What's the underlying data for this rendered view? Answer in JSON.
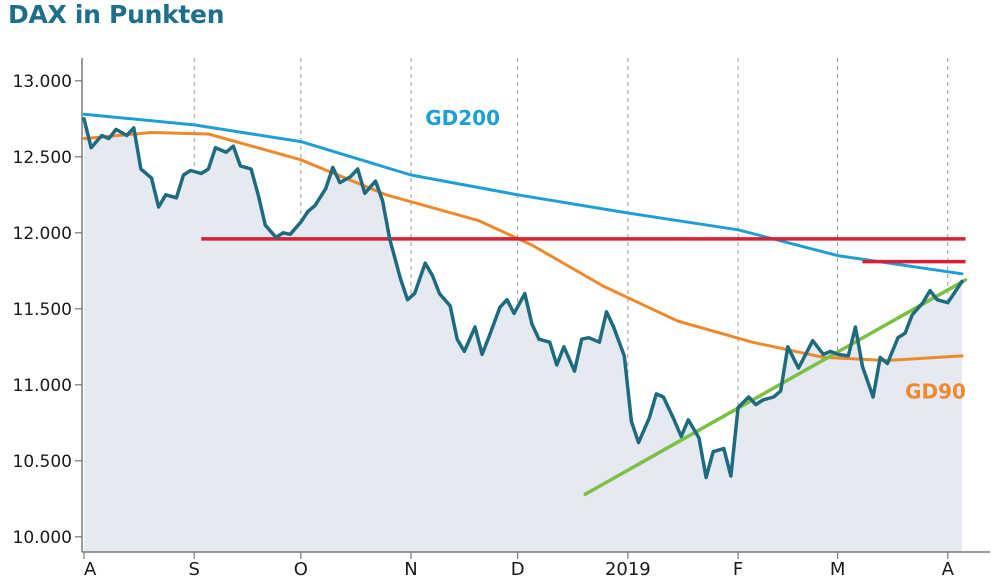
{
  "chart_data": {
    "type": "line",
    "title": "DAX in Punkten",
    "xlabel": "",
    "ylabel": "",
    "ylim": [
      9900,
      13150
    ],
    "y_ticks": [
      10000,
      10500,
      11000,
      11500,
      12000,
      12500,
      13000
    ],
    "y_tick_labels": [
      "10.000",
      "10.500",
      "11.000",
      "11.500",
      "12.000",
      "12.500",
      "13.000"
    ],
    "x_range": [
      "2018-08-01",
      "2019-04-05"
    ],
    "x_ticks": [
      {
        "date": "2018-08-01",
        "label": "A"
      },
      {
        "date": "2018-09-01",
        "label": "S"
      },
      {
        "date": "2018-10-01",
        "label": "O"
      },
      {
        "date": "2018-11-01",
        "label": "N"
      },
      {
        "date": "2018-12-01",
        "label": "D"
      },
      {
        "date": "2019-01-01",
        "label": "2019"
      },
      {
        "date": "2019-02-01",
        "label": "F"
      },
      {
        "date": "2019-03-01",
        "label": "M"
      },
      {
        "date": "2019-04-01",
        "label": "A"
      }
    ],
    "grid": "vertical-dashed",
    "colors": {
      "dax": "#1e6b80",
      "area": "#e4e9f2",
      "gd200": "#1f9fd6",
      "gd90": "#ee8a2d",
      "resistance": "#d81f35",
      "trend": "#7cc242",
      "axis": "#7a7a7a",
      "title": "#1e6f8c"
    },
    "series": [
      {
        "name": "DAX",
        "role": "dax",
        "points": [
          [
            "2018-08-01",
            12750
          ],
          [
            "2018-08-03",
            12560
          ],
          [
            "2018-08-06",
            12640
          ],
          [
            "2018-08-08",
            12620
          ],
          [
            "2018-08-10",
            12680
          ],
          [
            "2018-08-13",
            12640
          ],
          [
            "2018-08-15",
            12690
          ],
          [
            "2018-08-17",
            12420
          ],
          [
            "2018-08-20",
            12360
          ],
          [
            "2018-08-22",
            12170
          ],
          [
            "2018-08-24",
            12250
          ],
          [
            "2018-08-27",
            12230
          ],
          [
            "2018-08-29",
            12380
          ],
          [
            "2018-08-31",
            12410
          ],
          [
            "2018-09-03",
            12390
          ],
          [
            "2018-09-05",
            12420
          ],
          [
            "2018-09-07",
            12560
          ],
          [
            "2018-09-10",
            12530
          ],
          [
            "2018-09-12",
            12570
          ],
          [
            "2018-09-14",
            12440
          ],
          [
            "2018-09-17",
            12420
          ],
          [
            "2018-09-19",
            12250
          ],
          [
            "2018-09-21",
            12050
          ],
          [
            "2018-09-24",
            11970
          ],
          [
            "2018-09-26",
            12000
          ],
          [
            "2018-09-28",
            11990
          ],
          [
            "2018-10-01",
            12070
          ],
          [
            "2018-10-03",
            12140
          ],
          [
            "2018-10-05",
            12180
          ],
          [
            "2018-10-08",
            12290
          ],
          [
            "2018-10-10",
            12430
          ],
          [
            "2018-10-12",
            12330
          ],
          [
            "2018-10-15",
            12370
          ],
          [
            "2018-10-17",
            12420
          ],
          [
            "2018-10-19",
            12260
          ],
          [
            "2018-10-22",
            12340
          ],
          [
            "2018-10-24",
            12210
          ],
          [
            "2018-10-26",
            11960
          ],
          [
            "2018-10-29",
            11700
          ],
          [
            "2018-10-31",
            11560
          ],
          [
            "2018-11-02",
            11600
          ],
          [
            "2018-11-05",
            11800
          ],
          [
            "2018-11-07",
            11720
          ],
          [
            "2018-11-09",
            11600
          ],
          [
            "2018-11-12",
            11520
          ],
          [
            "2018-11-14",
            11300
          ],
          [
            "2018-11-16",
            11220
          ],
          [
            "2018-11-19",
            11380
          ],
          [
            "2018-11-21",
            11200
          ],
          [
            "2018-11-23",
            11320
          ],
          [
            "2018-11-26",
            11510
          ],
          [
            "2018-11-28",
            11560
          ],
          [
            "2018-11-30",
            11470
          ],
          [
            "2018-12-03",
            11600
          ],
          [
            "2018-12-05",
            11400
          ],
          [
            "2018-12-07",
            11300
          ],
          [
            "2018-12-10",
            11280
          ],
          [
            "2018-12-12",
            11130
          ],
          [
            "2018-12-14",
            11250
          ],
          [
            "2018-12-17",
            11090
          ],
          [
            "2018-12-19",
            11300
          ],
          [
            "2018-12-21",
            11310
          ],
          [
            "2018-12-24",
            11280
          ],
          [
            "2018-12-26",
            11480
          ],
          [
            "2018-12-28",
            11380
          ],
          [
            "2018-12-31",
            11190
          ],
          [
            "2019-01-02",
            10760
          ],
          [
            "2019-01-04",
            10620
          ],
          [
            "2019-01-07",
            10780
          ],
          [
            "2019-01-09",
            10940
          ],
          [
            "2019-01-11",
            10920
          ],
          [
            "2019-01-14",
            10770
          ],
          [
            "2019-01-16",
            10660
          ],
          [
            "2019-01-18",
            10770
          ],
          [
            "2019-01-21",
            10650
          ],
          [
            "2019-01-23",
            10390
          ],
          [
            "2019-01-25",
            10560
          ],
          [
            "2019-01-28",
            10580
          ],
          [
            "2019-01-30",
            10400
          ],
          [
            "2019-02-01",
            10850
          ],
          [
            "2019-02-04",
            10920
          ],
          [
            "2019-02-06",
            10870
          ],
          [
            "2019-02-08",
            10900
          ],
          [
            "2019-02-11",
            10920
          ],
          [
            "2019-02-13",
            10960
          ],
          [
            "2019-02-15",
            11250
          ],
          [
            "2019-02-18",
            11110
          ],
          [
            "2019-02-20",
            11200
          ],
          [
            "2019-02-22",
            11290
          ],
          [
            "2019-02-25",
            11200
          ],
          [
            "2019-02-27",
            11220
          ],
          [
            "2019-03-01",
            11200
          ],
          [
            "2019-03-04",
            11190
          ],
          [
            "2019-03-06",
            11380
          ],
          [
            "2019-03-08",
            11120
          ],
          [
            "2019-03-11",
            10920
          ],
          [
            "2019-03-13",
            11180
          ],
          [
            "2019-03-15",
            11140
          ],
          [
            "2019-03-18",
            11310
          ],
          [
            "2019-03-20",
            11340
          ],
          [
            "2019-03-22",
            11460
          ],
          [
            "2019-03-25",
            11540
          ],
          [
            "2019-03-27",
            11620
          ],
          [
            "2019-03-29",
            11560
          ],
          [
            "2019-04-01",
            11540
          ],
          [
            "2019-04-03",
            11610
          ],
          [
            "2019-04-05",
            11680
          ]
        ]
      },
      {
        "name": "GD200",
        "role": "gd200",
        "points": [
          [
            "2018-08-01",
            12780
          ],
          [
            "2018-09-01",
            12710
          ],
          [
            "2018-10-01",
            12600
          ],
          [
            "2018-11-01",
            12380
          ],
          [
            "2018-12-01",
            12250
          ],
          [
            "2019-01-01",
            12130
          ],
          [
            "2019-02-01",
            12020
          ],
          [
            "2019-03-01",
            11850
          ],
          [
            "2019-04-05",
            11730
          ]
        ]
      },
      {
        "name": "GD90",
        "role": "gd90",
        "points": [
          [
            "2018-08-01",
            12620
          ],
          [
            "2018-08-20",
            12660
          ],
          [
            "2018-09-05",
            12650
          ],
          [
            "2018-10-01",
            12480
          ],
          [
            "2018-10-25",
            12250
          ],
          [
            "2018-11-20",
            12080
          ],
          [
            "2018-12-05",
            11920
          ],
          [
            "2018-12-25",
            11650
          ],
          [
            "2019-01-15",
            11420
          ],
          [
            "2019-02-05",
            11280
          ],
          [
            "2019-02-25",
            11180
          ],
          [
            "2019-03-15",
            11160
          ],
          [
            "2019-04-05",
            11190
          ]
        ]
      }
    ],
    "reference_lines": [
      {
        "role": "resistance",
        "y": 11960,
        "x_from": "2018-09-03",
        "x_to": "2019-04-06"
      },
      {
        "role": "resistance",
        "y": 11810,
        "x_from": "2019-03-08",
        "x_to": "2019-04-06"
      }
    ],
    "trend_line": {
      "role": "trend",
      "from": [
        "2018-12-20",
        10280
      ],
      "to": [
        "2019-04-06",
        11690
      ]
    },
    "labels": [
      {
        "series": "GD200",
        "text": "GD200",
        "placement": "above-line-center",
        "at": [
          "2018-11-05",
          12710
        ]
      },
      {
        "series": "GD90",
        "text": "GD90",
        "placement": "below-right",
        "at": [
          "2019-03-20",
          10910
        ]
      }
    ]
  }
}
